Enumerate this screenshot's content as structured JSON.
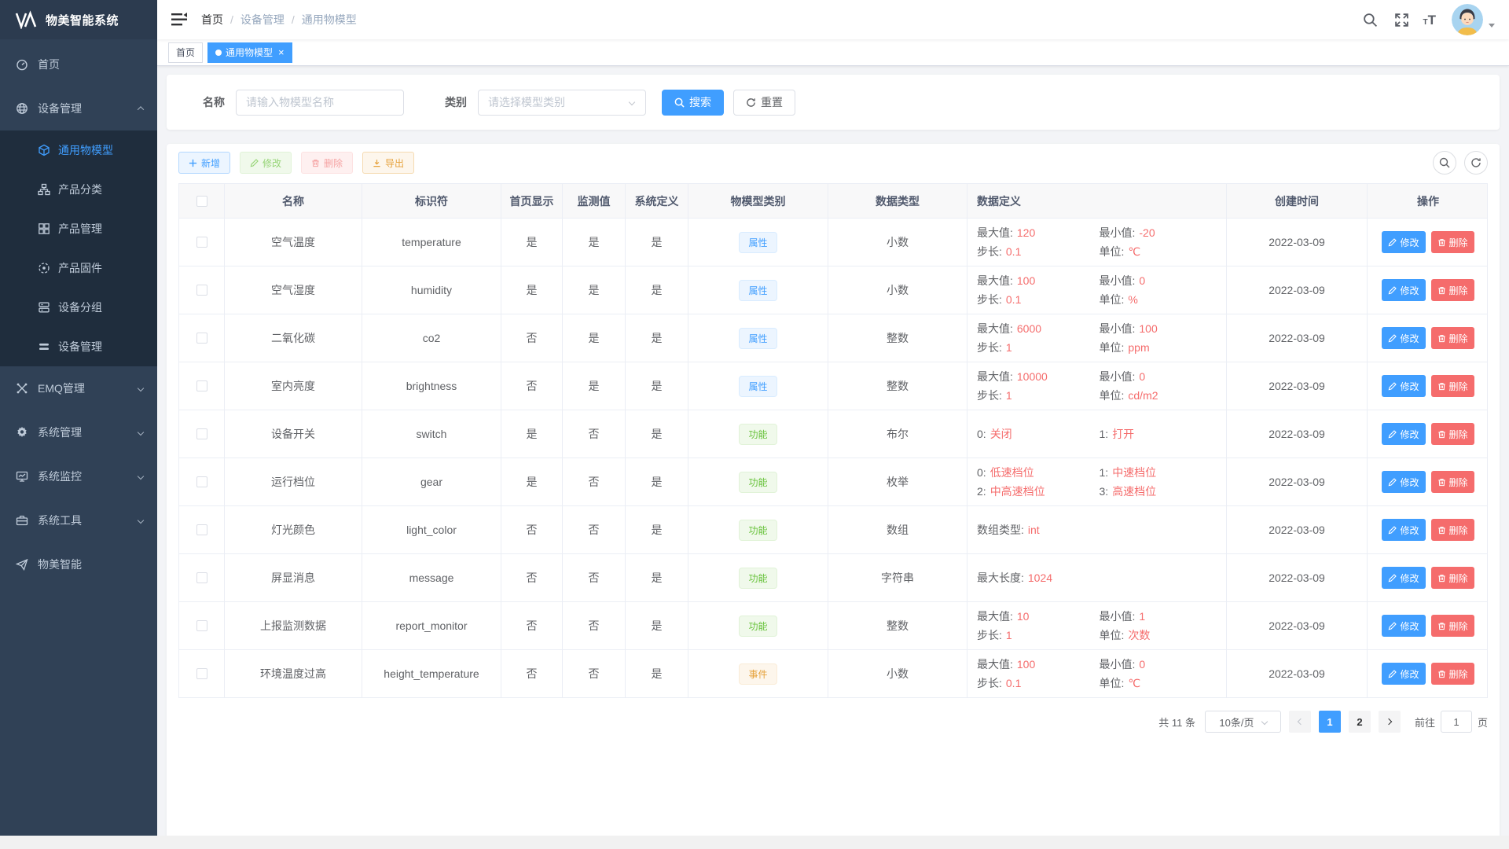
{
  "app": {
    "title": "物美智能系统"
  },
  "sidebar": {
    "items": [
      {
        "label": "首页",
        "icon": "dashboard-icon"
      },
      {
        "label": "设备管理",
        "icon": "device-manage-icon",
        "children": [
          {
            "label": "通用物模型",
            "icon": "thing-model-icon",
            "active": true
          },
          {
            "label": "产品分类",
            "icon": "product-category-icon"
          },
          {
            "label": "产品管理",
            "icon": "product-manage-icon"
          },
          {
            "label": "产品固件",
            "icon": "firmware-icon"
          },
          {
            "label": "设备分组",
            "icon": "device-group-icon"
          },
          {
            "label": "设备管理",
            "icon": "device-list-icon"
          }
        ]
      },
      {
        "label": "EMQ管理",
        "icon": "emq-icon"
      },
      {
        "label": "系统管理",
        "icon": "system-manage-icon"
      },
      {
        "label": "系统监控",
        "icon": "system-monitor-icon"
      },
      {
        "label": "系统工具",
        "icon": "system-tools-icon"
      },
      {
        "label": "物美智能",
        "icon": "wumei-icon"
      }
    ]
  },
  "header": {
    "breadcrumb": [
      "首页",
      "设备管理",
      "通用物模型"
    ],
    "separator": "/",
    "icons": [
      "search-icon",
      "fullscreen-icon",
      "font-size-icon",
      "avatar"
    ]
  },
  "tabs": {
    "home": "首页",
    "current": "通用物模型",
    "close": "×"
  },
  "filter": {
    "name_label": "名称",
    "name_placeholder": "请输入物模型名称",
    "type_label": "类别",
    "type_placeholder": "请选择模型类别",
    "search_label": "搜索",
    "reset_label": "重置"
  },
  "toolbar": {
    "add_label": "新增",
    "edit_label": "修改",
    "delete_label": "删除",
    "export_label": "导出"
  },
  "table": {
    "headers": [
      "名称",
      "标识符",
      "首页显示",
      "监测值",
      "系统定义",
      "物模型类别",
      "数据类型",
      "数据定义",
      "创建时间",
      "操作"
    ],
    "actions": {
      "edit": "修改",
      "delete": "删除"
    },
    "rows": [
      {
        "name": "空气温度",
        "identifier": "temperature",
        "home": "是",
        "monitor": "是",
        "system": "是",
        "category": {
          "label": "属性",
          "type": "property"
        },
        "data_type": "小数",
        "defs": [
          {
            "label": "最大值:",
            "value": "120"
          },
          {
            "label": "最小值:",
            "value": "-20"
          },
          {
            "label": "步长:",
            "value": "0.1"
          },
          {
            "label": "单位:",
            "value": "℃"
          }
        ],
        "created": "2022-03-09"
      },
      {
        "name": "空气湿度",
        "identifier": "humidity",
        "home": "是",
        "monitor": "是",
        "system": "是",
        "category": {
          "label": "属性",
          "type": "property"
        },
        "data_type": "小数",
        "defs": [
          {
            "label": "最大值:",
            "value": "100"
          },
          {
            "label": "最小值:",
            "value": "0"
          },
          {
            "label": "步长:",
            "value": "0.1"
          },
          {
            "label": "单位:",
            "value": "%"
          }
        ],
        "created": "2022-03-09"
      },
      {
        "name": "二氧化碳",
        "identifier": "co2",
        "home": "否",
        "monitor": "是",
        "system": "是",
        "category": {
          "label": "属性",
          "type": "property"
        },
        "data_type": "整数",
        "defs": [
          {
            "label": "最大值:",
            "value": "6000"
          },
          {
            "label": "最小值:",
            "value": "100"
          },
          {
            "label": "步长:",
            "value": "1"
          },
          {
            "label": "单位:",
            "value": "ppm"
          }
        ],
        "created": "2022-03-09"
      },
      {
        "name": "室内亮度",
        "identifier": "brightness",
        "home": "否",
        "monitor": "是",
        "system": "是",
        "category": {
          "label": "属性",
          "type": "property"
        },
        "data_type": "整数",
        "defs": [
          {
            "label": "最大值:",
            "value": "10000"
          },
          {
            "label": "最小值:",
            "value": "0"
          },
          {
            "label": "步长:",
            "value": "1"
          },
          {
            "label": "单位:",
            "value": "cd/m2"
          }
        ],
        "created": "2022-03-09"
      },
      {
        "name": "设备开关",
        "identifier": "switch",
        "home": "是",
        "monitor": "否",
        "system": "是",
        "category": {
          "label": "功能",
          "type": "function"
        },
        "data_type": "布尔",
        "defs": [
          {
            "label": "0:",
            "value": "关闭"
          },
          {
            "label": "1:",
            "value": "打开"
          }
        ],
        "created": "2022-03-09"
      },
      {
        "name": "运行档位",
        "identifier": "gear",
        "home": "是",
        "monitor": "否",
        "system": "是",
        "category": {
          "label": "功能",
          "type": "function"
        },
        "data_type": "枚举",
        "defs": [
          {
            "label": "0:",
            "value": "低速档位"
          },
          {
            "label": "1:",
            "value": "中速档位"
          },
          {
            "label": "2:",
            "value": "中高速档位"
          },
          {
            "label": "3:",
            "value": "高速档位"
          }
        ],
        "created": "2022-03-09"
      },
      {
        "name": "灯光颜色",
        "identifier": "light_color",
        "home": "否",
        "monitor": "否",
        "system": "是",
        "category": {
          "label": "功能",
          "type": "function"
        },
        "data_type": "数组",
        "defs": [
          {
            "label": "数组类型:",
            "value": "int"
          }
        ],
        "created": "2022-03-09"
      },
      {
        "name": "屏显消息",
        "identifier": "message",
        "home": "否",
        "monitor": "否",
        "system": "是",
        "category": {
          "label": "功能",
          "type": "function"
        },
        "data_type": "字符串",
        "defs": [
          {
            "label": "最大长度:",
            "value": "1024"
          }
        ],
        "created": "2022-03-09"
      },
      {
        "name": "上报监测数据",
        "identifier": "report_monitor",
        "home": "否",
        "monitor": "否",
        "system": "是",
        "category": {
          "label": "功能",
          "type": "function"
        },
        "data_type": "整数",
        "defs": [
          {
            "label": "最大值:",
            "value": "10"
          },
          {
            "label": "最小值:",
            "value": "1"
          },
          {
            "label": "步长:",
            "value": "1"
          },
          {
            "label": "单位:",
            "value": "次数"
          }
        ],
        "created": "2022-03-09"
      },
      {
        "name": "环境温度过高",
        "identifier": "height_temperature",
        "home": "否",
        "monitor": "否",
        "system": "是",
        "category": {
          "label": "事件",
          "type": "event"
        },
        "data_type": "小数",
        "defs": [
          {
            "label": "最大值:",
            "value": "100"
          },
          {
            "label": "最小值:",
            "value": "0"
          },
          {
            "label": "步长:",
            "value": "0.1"
          },
          {
            "label": "单位:",
            "value": "℃"
          }
        ],
        "created": "2022-03-09"
      }
    ]
  },
  "pagination": {
    "total": "共 11 条",
    "page_size": "10条/页",
    "pages": [
      "1",
      "2"
    ],
    "active_page": "1",
    "goto_label": "前往",
    "goto_value": "1",
    "unit_label": "页"
  },
  "colors": {
    "accent": "#409eff",
    "danger": "#f56c6c",
    "success": "#67c23a",
    "warning": "#e6a23c"
  }
}
